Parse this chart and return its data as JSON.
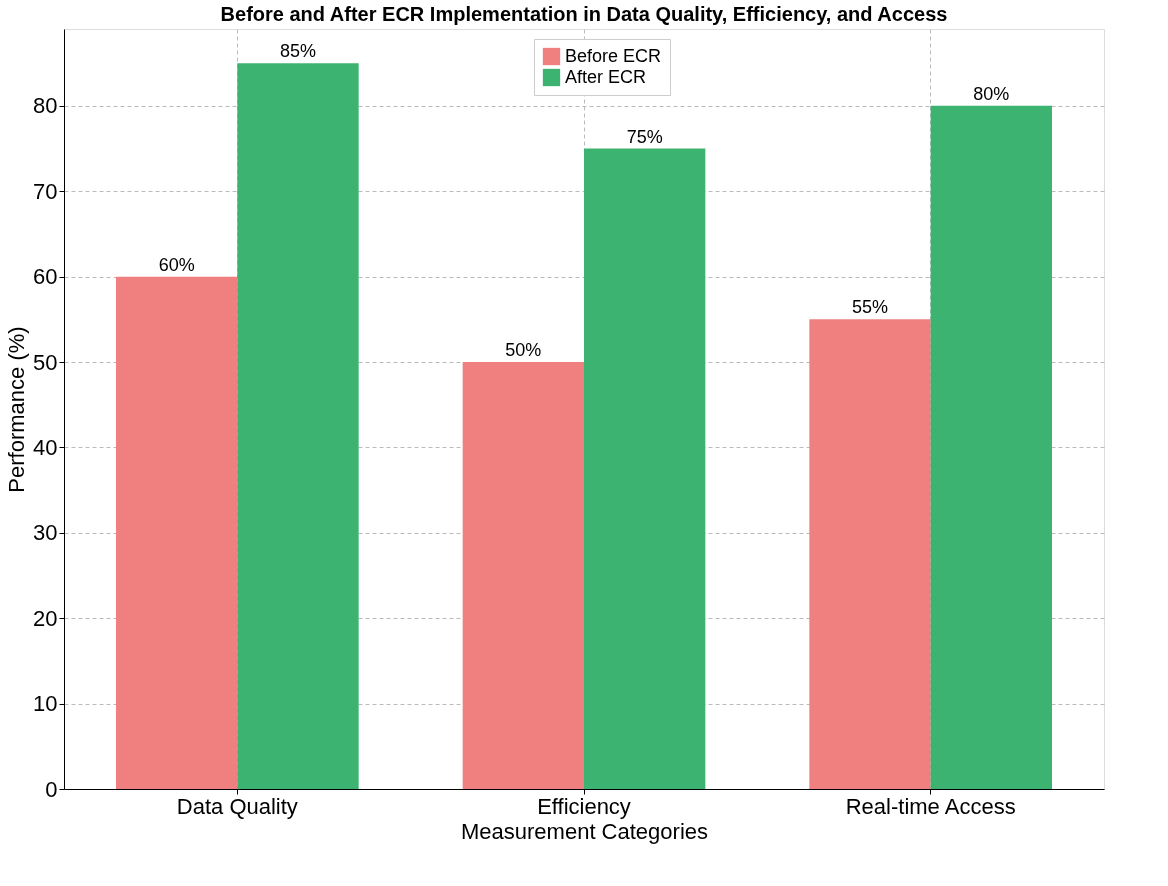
{
  "chart_data": {
    "type": "bar",
    "title": "Before and After ECR Implementation in Data Quality, Efficiency, and Access",
    "xlabel": "Measurement Categories",
    "ylabel": "Performance (%)",
    "categories": [
      "Data Quality",
      "Efficiency",
      "Real-time Access"
    ],
    "series": [
      {
        "name": "Before ECR",
        "color": "#f08080",
        "values": [
          60,
          50,
          55
        ],
        "value_labels": [
          "60%",
          "50%",
          "55%"
        ]
      },
      {
        "name": "After ECR",
        "color": "#3cb371",
        "values": [
          85,
          75,
          80
        ],
        "value_labels": [
          "85%",
          "75%",
          "80%"
        ]
      }
    ],
    "ylim": [
      0,
      89
    ],
    "yticks": [
      0,
      10,
      20,
      30,
      40,
      50,
      60,
      70,
      80
    ],
    "grid": true,
    "legend": "top"
  }
}
